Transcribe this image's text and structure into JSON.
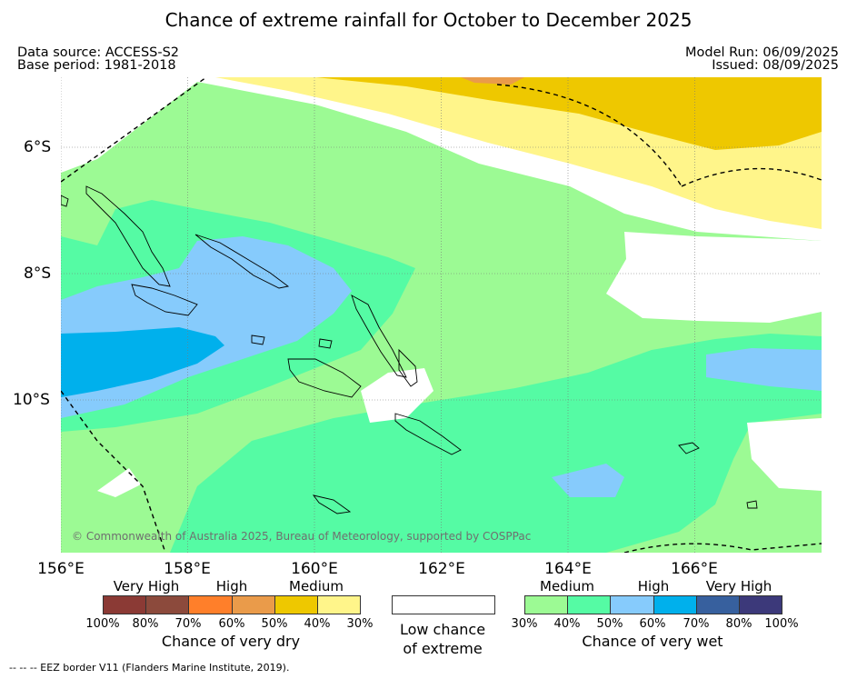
{
  "title": "Chance of extreme rainfall for October to December 2025",
  "data_source": "Data source: ACCESS-S2",
  "base_period": "Base period: 1981-2018",
  "model_run": "Model Run: 06/09/2025",
  "issued": "Issued: 08/09/2025",
  "copyright": "© Commonwealth of Australia 2025, Bureau of Meteorology, supported by COSPPac",
  "lon_labels": [
    "156°E",
    "158°E",
    "160°E",
    "162°E",
    "164°E",
    "166°E"
  ],
  "lat_labels": [
    "6°S",
    "8°S",
    "10°S"
  ],
  "dry_legend": {
    "categories": [
      "Very High",
      "High",
      "Medium"
    ],
    "ticks": [
      "100%",
      "80%",
      "70%",
      "60%",
      "50%",
      "40%",
      "30%"
    ],
    "colors": [
      "#8b3a35",
      "#8c4a3c",
      "#ff7f2a",
      "#ea9b4a",
      "#eec800",
      "#fff58a"
    ],
    "caption": "Chance of very dry"
  },
  "low_chance": {
    "line1": "Low chance",
    "line2": "of extreme",
    "color": "#ffffff"
  },
  "wet_legend": {
    "categories": [
      "Medium",
      "High",
      "Very High"
    ],
    "ticks": [
      "30%",
      "40%",
      "50%",
      "60%",
      "70%",
      "80%",
      "100%"
    ],
    "colors": [
      "#9cfa94",
      "#55fba4",
      "#86cbfc",
      "#00b0ec",
      "#37609e",
      "#3c397a"
    ],
    "caption": "Chance of very wet"
  },
  "footer": "-- -- -- EEZ border V11 (Flanders Marine Institute, 2019)."
}
